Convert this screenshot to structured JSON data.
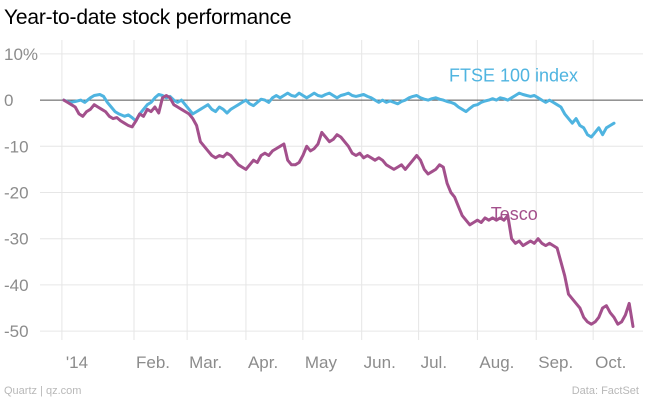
{
  "chart_data": {
    "type": "line",
    "title": "Year-to-date stock performance",
    "xlabel": "",
    "ylabel": "",
    "ylim": [
      -53,
      13
    ],
    "xlim": [
      0,
      292
    ],
    "y_ticks": [
      10,
      0,
      -10,
      -20,
      -30,
      -40,
      -50
    ],
    "y_tick_labels": [
      "10%",
      "0",
      "-10",
      "-20",
      "-30",
      "-40",
      "-50"
    ],
    "x_ticks": [
      {
        "label": "'14",
        "day": 1
      },
      {
        "label": "Feb.",
        "day": 39
      },
      {
        "label": "Mar.",
        "day": 67
      },
      {
        "label": "Apr.",
        "day": 98
      },
      {
        "label": "May",
        "day": 128
      },
      {
        "label": "Jun.",
        "day": 159
      },
      {
        "label": "Jul.",
        "day": 189
      },
      {
        "label": "Aug.",
        "day": 220
      },
      {
        "label": "Sep.",
        "day": 251
      },
      {
        "label": "Oct.",
        "day": 281
      }
    ],
    "grid": true,
    "zero_line": true,
    "series": [
      {
        "name": "FTSE 100 index",
        "color": "#4fb4e0",
        "label_anchor": [
          205,
          4
        ],
        "points": [
          [
            2,
            0
          ],
          [
            5,
            -0.5
          ],
          [
            8,
            -0.3
          ],
          [
            11,
            0
          ],
          [
            13,
            -0.5
          ],
          [
            16,
            0.5
          ],
          [
            18,
            1
          ],
          [
            21,
            1.2
          ],
          [
            23,
            0.8
          ],
          [
            25,
            -0.5
          ],
          [
            27,
            -1.5
          ],
          [
            29,
            -2.5
          ],
          [
            31,
            -3
          ],
          [
            34,
            -3.5
          ],
          [
            36,
            -3.2
          ],
          [
            38,
            -3.8
          ],
          [
            40,
            -4.5
          ],
          [
            42,
            -3
          ],
          [
            44,
            -2
          ],
          [
            46,
            -1
          ],
          [
            48,
            -0.5
          ],
          [
            50,
            0.5
          ],
          [
            52,
            1.2
          ],
          [
            54,
            1
          ],
          [
            56,
            0.5
          ],
          [
            58,
            0.8
          ],
          [
            60,
            0
          ],
          [
            62,
            -0.5
          ],
          [
            64,
            0
          ],
          [
            66,
            -1
          ],
          [
            68,
            -2
          ],
          [
            70,
            -3
          ],
          [
            72,
            -2.5
          ],
          [
            74,
            -2
          ],
          [
            76,
            -1.5
          ],
          [
            78,
            -1
          ],
          [
            80,
            -2
          ],
          [
            82,
            -2.5
          ],
          [
            84,
            -1.5
          ],
          [
            86,
            -2
          ],
          [
            88,
            -2.8
          ],
          [
            90,
            -2
          ],
          [
            92,
            -1.5
          ],
          [
            94,
            -1
          ],
          [
            96,
            -0.5
          ],
          [
            98,
            0
          ],
          [
            100,
            -0.8
          ],
          [
            102,
            -1.2
          ],
          [
            104,
            -0.5
          ],
          [
            106,
            0.2
          ],
          [
            108,
            0
          ],
          [
            110,
            -0.5
          ],
          [
            112,
            0.5
          ],
          [
            114,
            1
          ],
          [
            116,
            0.5
          ],
          [
            118,
            1
          ],
          [
            120,
            1.5
          ],
          [
            122,
            1
          ],
          [
            124,
            0.8
          ],
          [
            126,
            1.5
          ],
          [
            128,
            1
          ],
          [
            130,
            0.5
          ],
          [
            132,
            1
          ],
          [
            134,
            1.5
          ],
          [
            136,
            1
          ],
          [
            138,
            0.8
          ],
          [
            140,
            1.2
          ],
          [
            142,
            1.5
          ],
          [
            144,
            1
          ],
          [
            146,
            0.5
          ],
          [
            148,
            1
          ],
          [
            150,
            1.2
          ],
          [
            152,
            1.5
          ],
          [
            154,
            1
          ],
          [
            156,
            0.8
          ],
          [
            158,
            1
          ],
          [
            160,
            1.2
          ],
          [
            162,
            0.8
          ],
          [
            164,
            0.5
          ],
          [
            166,
            0
          ],
          [
            168,
            -0.5
          ],
          [
            170,
            0
          ],
          [
            172,
            -0.5
          ],
          [
            174,
            -0.2
          ],
          [
            176,
            -0.5
          ],
          [
            178,
            -0.8
          ],
          [
            180,
            -0.3
          ],
          [
            182,
            0
          ],
          [
            184,
            0.5
          ],
          [
            186,
            0.8
          ],
          [
            188,
            1
          ],
          [
            190,
            0.5
          ],
          [
            192,
            0.2
          ],
          [
            194,
            0
          ],
          [
            196,
            0.3
          ],
          [
            198,
            0.5
          ],
          [
            200,
            0.2
          ],
          [
            202,
            0
          ],
          [
            204,
            -0.3
          ],
          [
            206,
            -0.5
          ],
          [
            208,
            -0.8
          ],
          [
            210,
            -1.5
          ],
          [
            212,
            -2
          ],
          [
            214,
            -2.5
          ],
          [
            216,
            -1.8
          ],
          [
            218,
            -1.2
          ],
          [
            220,
            -1
          ],
          [
            222,
            -0.5
          ],
          [
            224,
            -0.2
          ],
          [
            226,
            0
          ],
          [
            228,
            0.3
          ],
          [
            230,
            0
          ],
          [
            232,
            0.5
          ],
          [
            234,
            0.3
          ],
          [
            236,
            0
          ],
          [
            238,
            0.5
          ],
          [
            240,
            1
          ],
          [
            242,
            1.5
          ],
          [
            244,
            1.2
          ],
          [
            246,
            1
          ],
          [
            248,
            0.8
          ],
          [
            250,
            1
          ],
          [
            252,
            0.5
          ],
          [
            254,
            0
          ],
          [
            256,
            -0.5
          ],
          [
            258,
            0
          ],
          [
            260,
            -0.5
          ],
          [
            262,
            -1
          ],
          [
            264,
            -1.5
          ],
          [
            266,
            -3
          ],
          [
            268,
            -4
          ],
          [
            270,
            -5
          ],
          [
            272,
            -4
          ],
          [
            274,
            -5.5
          ],
          [
            276,
            -6
          ],
          [
            278,
            -7.5
          ],
          [
            280,
            -8
          ],
          [
            282,
            -7
          ],
          [
            284,
            -6
          ],
          [
            286,
            -7.5
          ],
          [
            288,
            -6
          ],
          [
            290,
            -5.5
          ],
          [
            292,
            -5
          ]
        ]
      },
      {
        "name": "Tesco",
        "color": "#a3508c",
        "label_anchor": [
          227,
          -26
        ],
        "points": [
          [
            2,
            0
          ],
          [
            4,
            -0.5
          ],
          [
            6,
            -1
          ],
          [
            8,
            -1.5
          ],
          [
            10,
            -3
          ],
          [
            12,
            -3.5
          ],
          [
            14,
            -2.5
          ],
          [
            16,
            -2
          ],
          [
            18,
            -1
          ],
          [
            20,
            -1.5
          ],
          [
            22,
            -2
          ],
          [
            24,
            -2.5
          ],
          [
            26,
            -3.5
          ],
          [
            28,
            -4
          ],
          [
            30,
            -3.8
          ],
          [
            32,
            -4.5
          ],
          [
            34,
            -5
          ],
          [
            36,
            -5.5
          ],
          [
            38,
            -5.8
          ],
          [
            40,
            -4.5
          ],
          [
            42,
            -3
          ],
          [
            44,
            -3.5
          ],
          [
            46,
            -2
          ],
          [
            48,
            -2.5
          ],
          [
            50,
            -1.5
          ],
          [
            52,
            -2.8
          ],
          [
            54,
            0.5
          ],
          [
            56,
            1
          ],
          [
            58,
            0.5
          ],
          [
            60,
            -1
          ],
          [
            62,
            -1.5
          ],
          [
            64,
            -2
          ],
          [
            66,
            -2.5
          ],
          [
            68,
            -3
          ],
          [
            70,
            -4
          ],
          [
            72,
            -5.5
          ],
          [
            74,
            -9
          ],
          [
            76,
            -10
          ],
          [
            78,
            -11
          ],
          [
            80,
            -12
          ],
          [
            82,
            -12.5
          ],
          [
            84,
            -12
          ],
          [
            86,
            -12.3
          ],
          [
            88,
            -11.5
          ],
          [
            90,
            -12
          ],
          [
            92,
            -13
          ],
          [
            94,
            -14
          ],
          [
            96,
            -14.5
          ],
          [
            98,
            -15
          ],
          [
            100,
            -14
          ],
          [
            102,
            -13
          ],
          [
            104,
            -13.5
          ],
          [
            106,
            -12
          ],
          [
            108,
            -11.5
          ],
          [
            110,
            -12
          ],
          [
            112,
            -11
          ],
          [
            114,
            -10.5
          ],
          [
            116,
            -10
          ],
          [
            118,
            -9.5
          ],
          [
            120,
            -13
          ],
          [
            122,
            -14
          ],
          [
            124,
            -14
          ],
          [
            126,
            -13.5
          ],
          [
            128,
            -12
          ],
          [
            130,
            -10
          ],
          [
            132,
            -11
          ],
          [
            134,
            -10.5
          ],
          [
            136,
            -9.5
          ],
          [
            138,
            -7
          ],
          [
            140,
            -8
          ],
          [
            142,
            -9
          ],
          [
            144,
            -8.5
          ],
          [
            146,
            -7.5
          ],
          [
            148,
            -8
          ],
          [
            150,
            -9
          ],
          [
            152,
            -10
          ],
          [
            154,
            -11.5
          ],
          [
            156,
            -12
          ],
          [
            158,
            -11.5
          ],
          [
            160,
            -12.5
          ],
          [
            162,
            -12
          ],
          [
            164,
            -12.5
          ],
          [
            166,
            -13
          ],
          [
            168,
            -12.5
          ],
          [
            170,
            -13
          ],
          [
            172,
            -14
          ],
          [
            174,
            -14.5
          ],
          [
            176,
            -15
          ],
          [
            178,
            -14.5
          ],
          [
            180,
            -14
          ],
          [
            182,
            -15
          ],
          [
            184,
            -14
          ],
          [
            186,
            -13
          ],
          [
            188,
            -12
          ],
          [
            190,
            -13
          ],
          [
            192,
            -15
          ],
          [
            194,
            -16
          ],
          [
            196,
            -15.5
          ],
          [
            198,
            -15
          ],
          [
            200,
            -14
          ],
          [
            202,
            -14.5
          ],
          [
            204,
            -18
          ],
          [
            206,
            -20
          ],
          [
            208,
            -21
          ],
          [
            210,
            -23
          ],
          [
            212,
            -25
          ],
          [
            214,
            -26
          ],
          [
            216,
            -27
          ],
          [
            218,
            -26.5
          ],
          [
            220,
            -26
          ],
          [
            222,
            -26.5
          ],
          [
            224,
            -25.5
          ],
          [
            226,
            -26
          ],
          [
            228,
            -25.5
          ],
          [
            230,
            -26
          ],
          [
            232,
            -25.5
          ],
          [
            234,
            -26
          ],
          [
            236,
            -25
          ],
          [
            238,
            -30
          ],
          [
            240,
            -31
          ],
          [
            242,
            -30.5
          ],
          [
            244,
            -31.5
          ],
          [
            246,
            -31
          ],
          [
            248,
            -30.5
          ],
          [
            250,
            -31
          ],
          [
            252,
            -30
          ],
          [
            254,
            -31
          ],
          [
            256,
            -31.5
          ],
          [
            258,
            -31
          ],
          [
            260,
            -31.5
          ],
          [
            262,
            -32
          ],
          [
            264,
            -35
          ],
          [
            266,
            -38
          ],
          [
            268,
            -42
          ],
          [
            270,
            -43
          ],
          [
            272,
            -44
          ],
          [
            274,
            -45
          ],
          [
            276,
            -47
          ],
          [
            278,
            -48
          ],
          [
            280,
            -48.5
          ],
          [
            282,
            -48
          ],
          [
            284,
            -47
          ],
          [
            286,
            -45
          ],
          [
            288,
            -44.5
          ],
          [
            290,
            -46
          ],
          [
            292,
            -47
          ],
          [
            294,
            -48.5
          ],
          [
            296,
            -48
          ],
          [
            298,
            -46.5
          ],
          [
            300,
            -44
          ],
          [
            302,
            -49
          ]
        ]
      }
    ]
  },
  "footer": {
    "credit": "Quartz | qz.com",
    "source": "Data: FactSet"
  },
  "colors": {
    "grid": "#e6e6e6",
    "zero_line": "#555555",
    "tick_text": "#8c8c8c"
  }
}
